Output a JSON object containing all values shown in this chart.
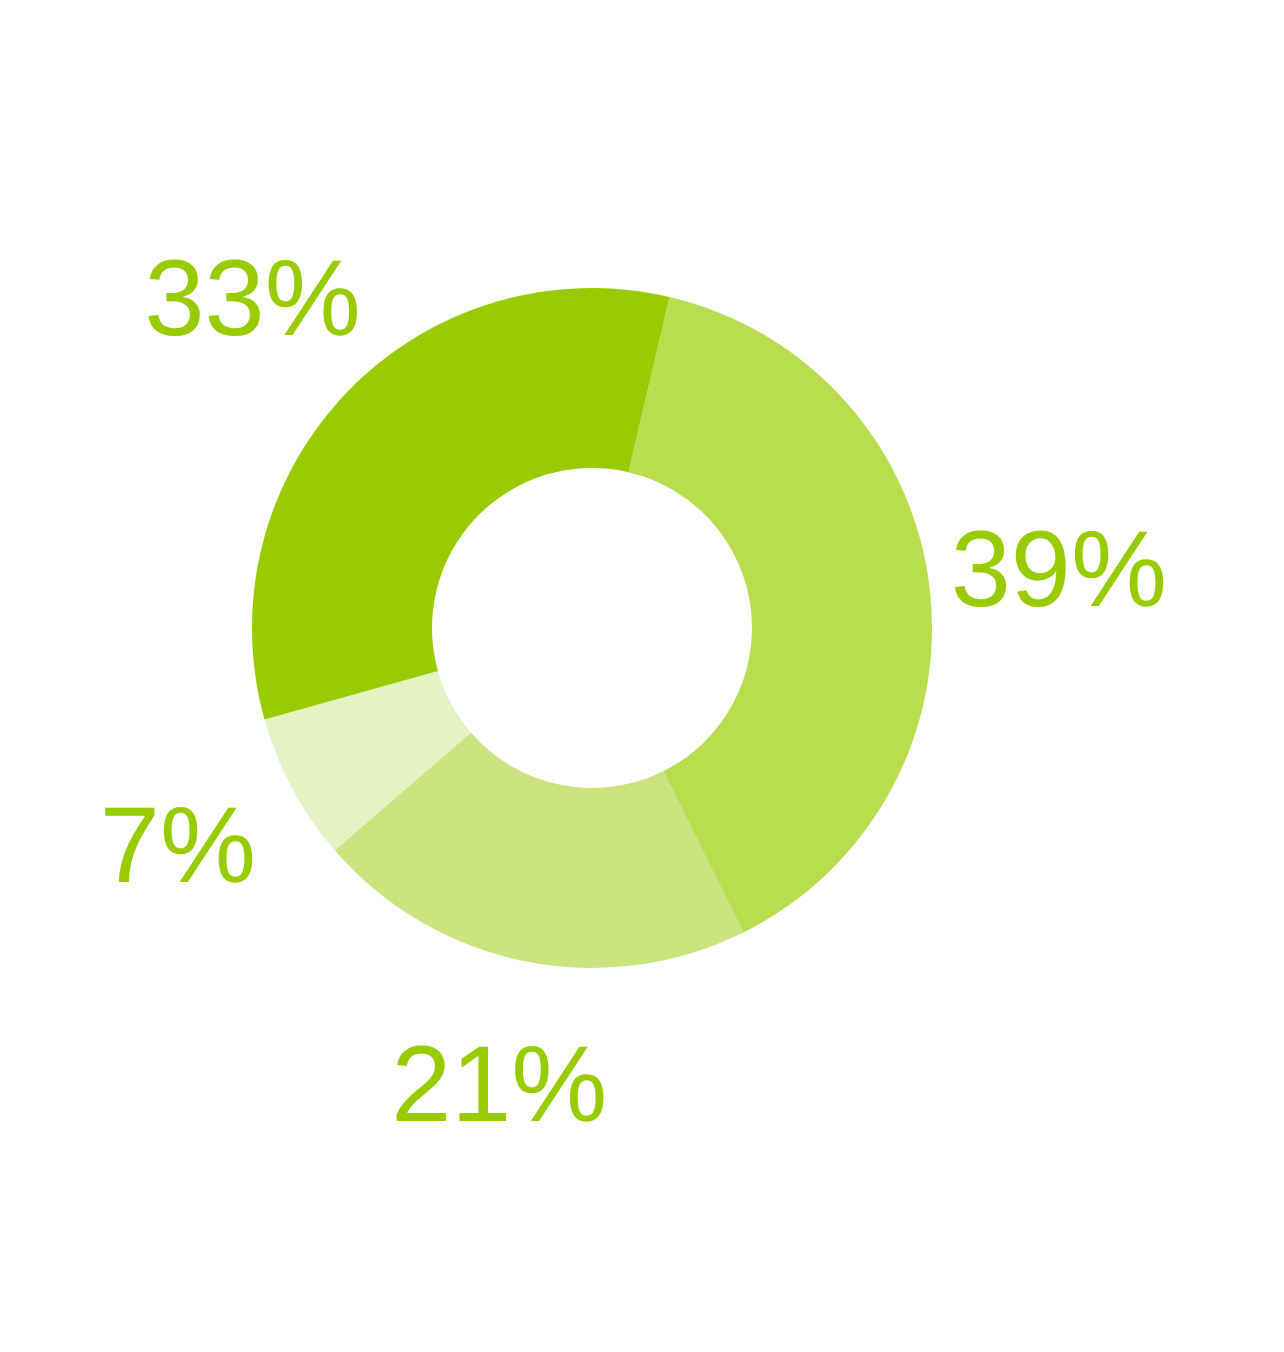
{
  "chart_data": {
    "type": "donut",
    "categories": [
      null,
      null,
      null,
      null
    ],
    "values": [
      39,
      21,
      7,
      33
    ],
    "colors": [
      "#b8dd4e",
      "#cce47f",
      "#e5f2c4",
      "#99cc00"
    ],
    "value_labels": [
      "39%",
      "21%",
      "7%",
      "33%"
    ]
  }
}
